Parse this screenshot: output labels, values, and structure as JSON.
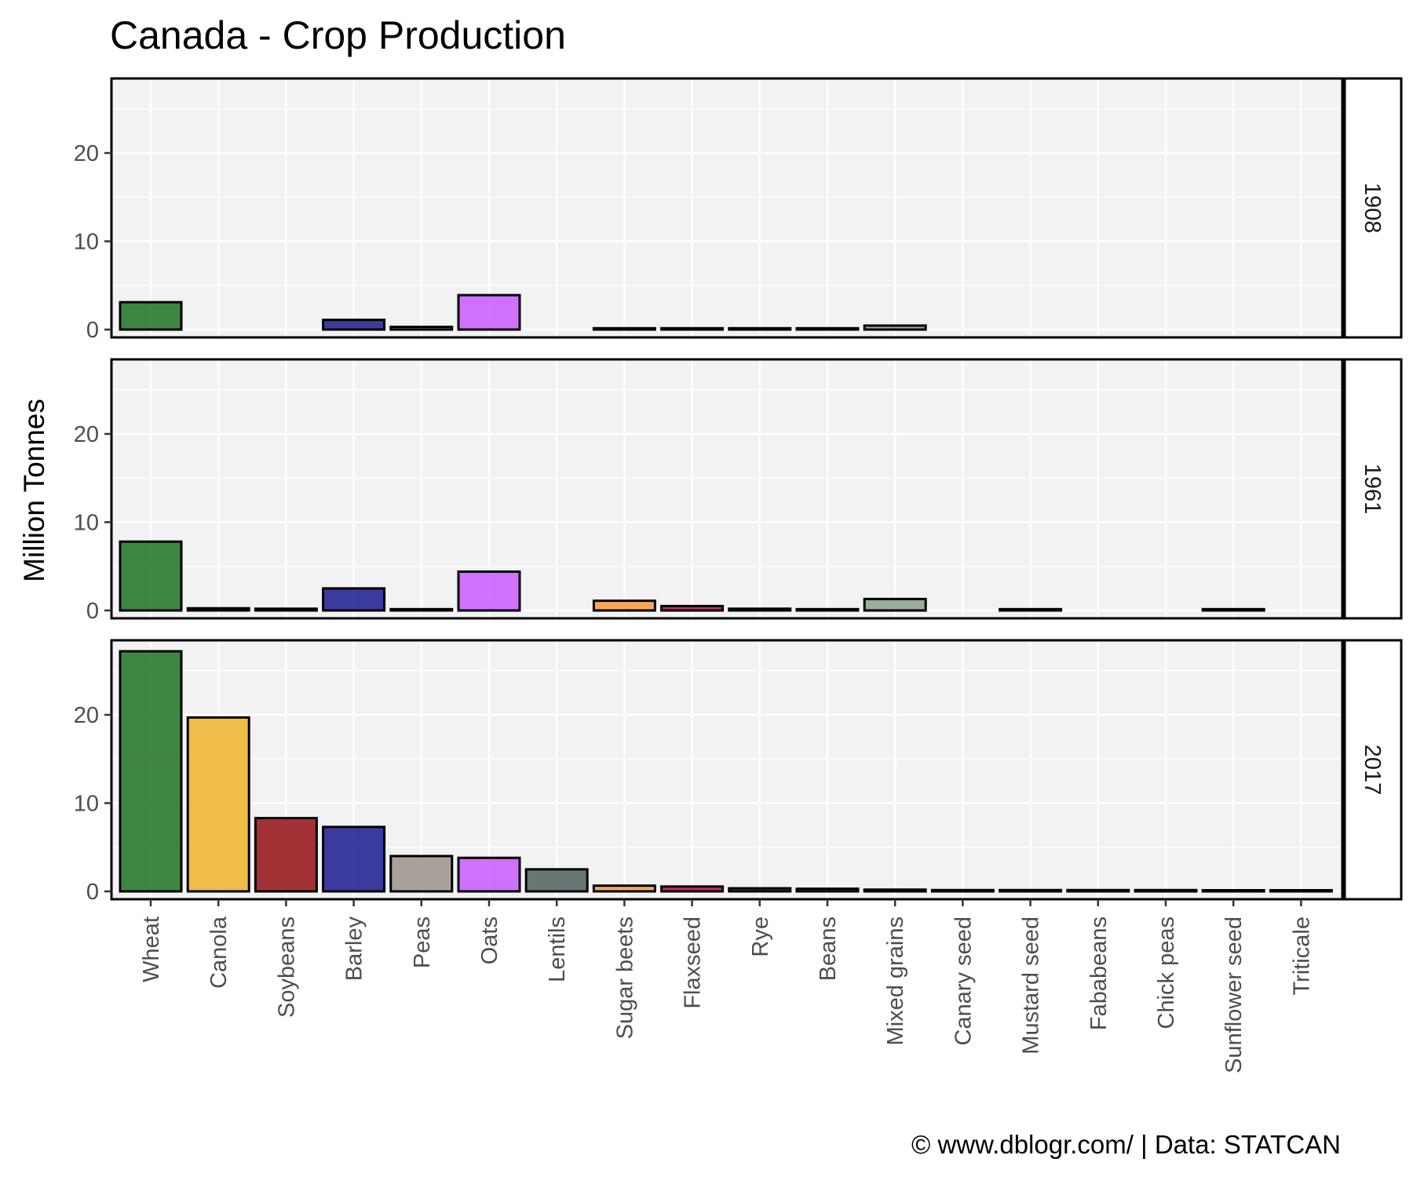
{
  "chart_data": {
    "type": "bar",
    "title": "Canada - Crop Production",
    "ylabel": "Million Tonnes",
    "xlabel": "",
    "caption": "© www.dblogr.com/  |  Data: STATCAN",
    "ylim": [
      0,
      28
    ],
    "yticks": [
      0,
      10,
      20
    ],
    "grid": true,
    "categories": [
      "Wheat",
      "Canola",
      "Soybeans",
      "Barley",
      "Peas",
      "Oats",
      "Lentils",
      "Sugar beets",
      "Flaxseed",
      "Rye",
      "Beans",
      "Mixed grains",
      "Canary seed",
      "Mustard seed",
      "Fababeans",
      "Chick peas",
      "Sunflower seed",
      "Triticale"
    ],
    "colors": [
      "#2e7d32",
      "#f0b93a",
      "#9b2226",
      "#2b2b96",
      "#a39b92",
      "#cc66ff",
      "#5a6e6b",
      "#f5a24a",
      "#c2185b",
      "#333333",
      "#555555",
      "#8fa88f",
      "#444444",
      "#444444",
      "#444444",
      "#444444",
      "#444444",
      "#444444"
    ],
    "panels": [
      {
        "label": "1908",
        "values": [
          3.1,
          null,
          null,
          1.1,
          0.3,
          3.9,
          null,
          0.15,
          0.15,
          0.15,
          0.15,
          0.45,
          null,
          null,
          null,
          null,
          null,
          null
        ]
      },
      {
        "label": "1961",
        "values": [
          7.8,
          0.25,
          0.2,
          2.5,
          0.15,
          4.4,
          null,
          1.1,
          0.5,
          0.2,
          0.15,
          1.3,
          null,
          0.15,
          null,
          null,
          0.15,
          null
        ]
      },
      {
        "label": "2017",
        "values": [
          27.2,
          19.7,
          8.3,
          7.3,
          4.0,
          3.8,
          2.5,
          0.65,
          0.55,
          0.35,
          0.3,
          0.2,
          0.15,
          0.15,
          0.15,
          0.15,
          0.1,
          0.1
        ]
      }
    ]
  }
}
